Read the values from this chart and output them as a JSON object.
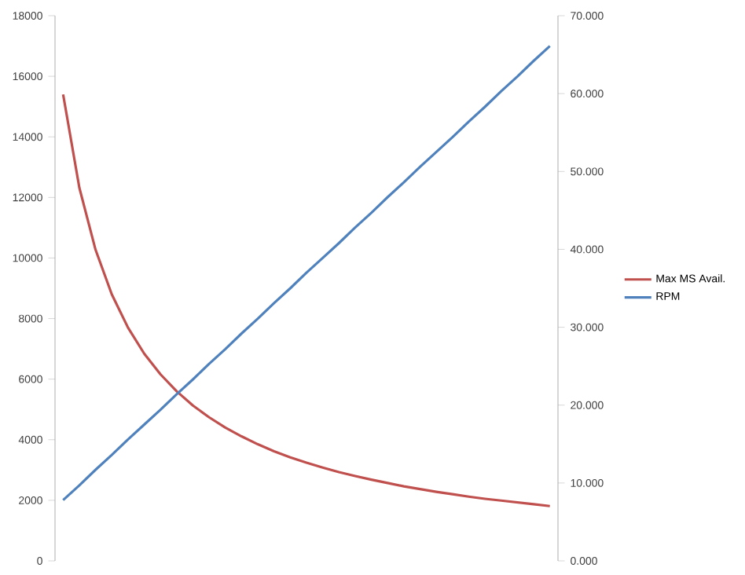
{
  "chart_data": {
    "type": "line",
    "categories": [
      null,
      null,
      null,
      null,
      null,
      null,
      null,
      null,
      null,
      null,
      null,
      null,
      null,
      null,
      null,
      null,
      null,
      null,
      null,
      null,
      null,
      null,
      null,
      null,
      null,
      null,
      null,
      null,
      null,
      null,
      null
    ],
    "series": [
      {
        "name": "Max MS Avail.",
        "color": "#c0504d",
        "values": [
          15400,
          12320,
          10270,
          8800,
          7700,
          6840,
          6160,
          5600,
          5130,
          4740,
          4400,
          4110,
          3850,
          3620,
          3420,
          3240,
          3080,
          2930,
          2800,
          2680,
          2570,
          2460,
          2370,
          2280,
          2200,
          2120,
          2050,
          1990,
          1930,
          1870,
          1810
        ]
      },
      {
        "name": "RPM",
        "color": "#4f81bd",
        "axis": "y2",
        "values": [
          7.8,
          9.7,
          11.7,
          13.6,
          15.6,
          17.5,
          19.4,
          21.4,
          23.3,
          25.3,
          27.2,
          29.2,
          31.1,
          33.1,
          35.0,
          37.0,
          38.9,
          40.8,
          42.8,
          44.7,
          46.7,
          48.6,
          50.6,
          52.5,
          54.4,
          56.4,
          58.3,
          60.3,
          62.2,
          64.2,
          66.1
        ]
      }
    ],
    "ylim": [
      0,
      18000
    ],
    "yticks": [
      0,
      2000,
      4000,
      6000,
      8000,
      10000,
      12000,
      14000,
      16000,
      18000
    ],
    "y2lim": [
      0,
      70
    ],
    "y2ticks": [
      {
        "value": 0,
        "label": "0.000"
      },
      {
        "value": 10,
        "label": "10.000"
      },
      {
        "value": 20,
        "label": "20.000"
      },
      {
        "value": 30,
        "label": "30.000"
      },
      {
        "value": 40,
        "label": "40.000"
      },
      {
        "value": 50,
        "label": "50.000"
      },
      {
        "value": 60,
        "label": "60.000"
      },
      {
        "value": 70,
        "label": "70.000"
      }
    ],
    "legend": "right",
    "marker": "none",
    "line_style": "solid",
    "grid": false
  }
}
